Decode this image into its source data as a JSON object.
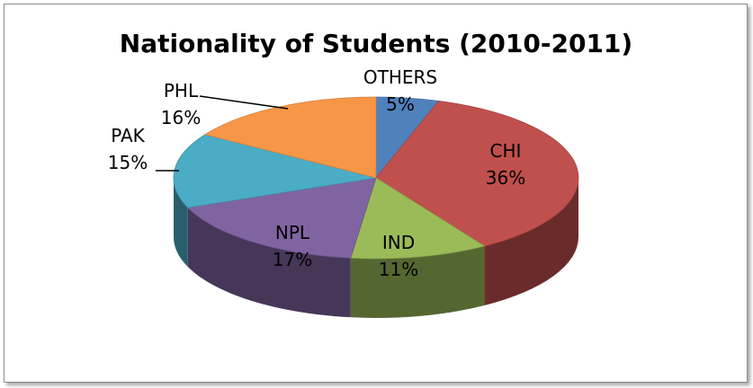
{
  "chart_data": {
    "type": "pie",
    "title": "Nationality of Students (2010-2011)",
    "slices": [
      {
        "label": "OTHERS",
        "value": 5,
        "value_label": "5%",
        "color": "#4f81bd"
      },
      {
        "label": "CHI",
        "value": 36,
        "value_label": "36%",
        "color": "#c0504d"
      },
      {
        "label": "IND",
        "value": 11,
        "value_label": "11%",
        "color": "#9bbb59"
      },
      {
        "label": "NPL",
        "value": 17,
        "value_label": "17%",
        "color": "#8064a2"
      },
      {
        "label": "PAK",
        "value": 15,
        "value_label": "15%",
        "color": "#4bacc6"
      },
      {
        "label": "PHL",
        "value": 16,
        "value_label": "16%",
        "color": "#f79646"
      }
    ],
    "style": "3d-pie",
    "legend": "none"
  }
}
